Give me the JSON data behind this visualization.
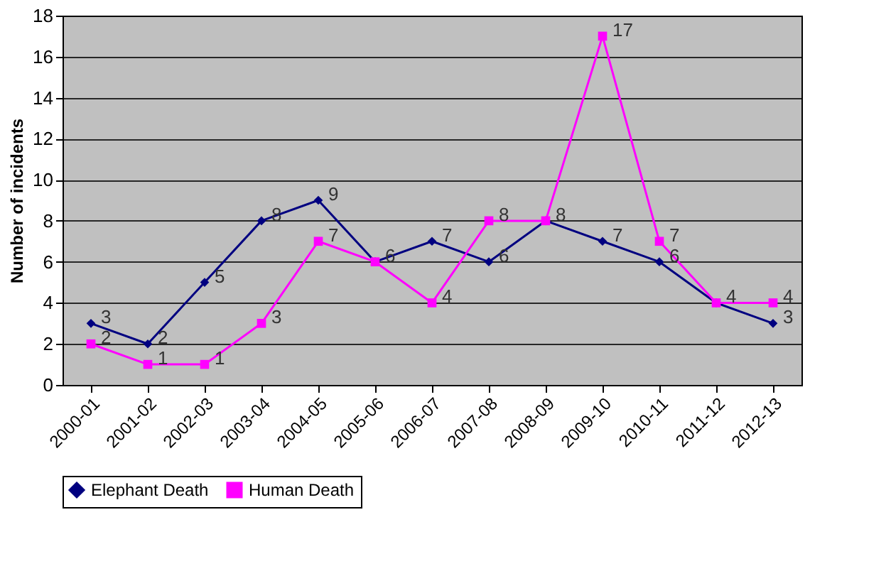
{
  "chart_data": {
    "type": "line",
    "ylabel": "Number of incidents",
    "categories": [
      "2000-01",
      "2001-02",
      "2002-03",
      "2003-04",
      "2004-05",
      "2005-06",
      "2006-07",
      "2007-08",
      "2008-09",
      "2009-10",
      "2010-11",
      "2011-12",
      "2012-13"
    ],
    "series": [
      {
        "name": "Elephant Death",
        "color": "#000080",
        "marker": "diamond",
        "values": [
          3,
          2,
          5,
          8,
          9,
          6,
          7,
          6,
          8,
          7,
          6,
          4,
          3
        ]
      },
      {
        "name": "Human Death",
        "color": "#ff00ff",
        "marker": "square",
        "values": [
          2,
          1,
          1,
          3,
          7,
          6,
          4,
          8,
          8,
          17,
          7,
          4,
          4
        ],
        "value_labels": [
          "2",
          "1",
          "1",
          "3",
          "7",
          null,
          "4",
          "8",
          null,
          "17",
          "7",
          null,
          "4"
        ]
      }
    ],
    "ylim": [
      0,
      18
    ],
    "yticks": [
      0,
      2,
      4,
      6,
      8,
      10,
      12,
      14,
      16,
      18
    ],
    "grid": "y",
    "legend": "bottom",
    "data_labels": true,
    "line_style": "solid"
  }
}
